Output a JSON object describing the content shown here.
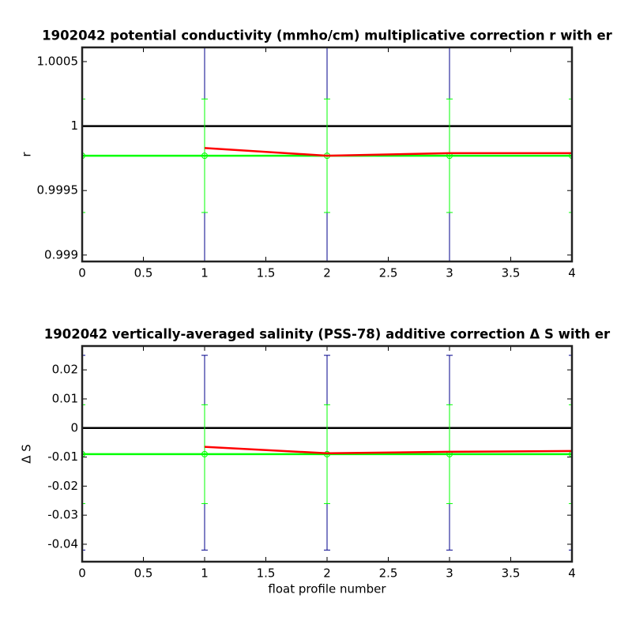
{
  "chart_data": [
    {
      "type": "line",
      "title": "1902042 potential conductivity (mmho/cm) multiplicative correction r with er",
      "y_label": "r",
      "xlim": [
        0,
        4
      ],
      "xticks": [
        0,
        0.5,
        1,
        1.5,
        2,
        2.5,
        3,
        3.5,
        4
      ],
      "ylim": [
        0.99895,
        1.00061
      ],
      "yticks": [
        0.999,
        0.9995,
        1,
        1.0005
      ],
      "x": [
        0,
        1,
        2,
        3,
        4
      ],
      "series": [
        {
          "color": "#00008b",
          "line": false,
          "values": [
            0.99977,
            0.99977,
            0.99977,
            0.99977,
            0.99977
          ],
          "errors": [
            0.0012,
            0.0012,
            0.0012,
            0.0012,
            0.0012
          ]
        },
        {
          "color": "#000000",
          "line": true,
          "values": [
            1,
            1,
            1,
            1,
            1
          ]
        },
        {
          "color": "#00ff00",
          "line": true,
          "marker": true,
          "values": [
            0.99977,
            0.99977,
            0.99977,
            0.99977,
            0.99977
          ],
          "errors": [
            0.00044,
            0.00044,
            0.00044,
            0.00044,
            0.00044
          ]
        },
        {
          "color": "#ff0000",
          "line": true,
          "values": [
            null,
            0.99983,
            0.99977,
            0.99979,
            0.99979
          ]
        }
      ]
    },
    {
      "type": "line",
      "title": "1902042 vertically-averaged salinity (PSS-78) additive correction Δ S with er",
      "y_label": "Δ S",
      "x_label": "float profile number",
      "xlim": [
        0,
        4
      ],
      "xticks": [
        0,
        0.5,
        1,
        1.5,
        2,
        2.5,
        3,
        3.5,
        4
      ],
      "ylim": [
        -0.046,
        0.0282
      ],
      "yticks": [
        -0.04,
        -0.03,
        -0.02,
        -0.01,
        0,
        0.01,
        0.02
      ],
      "x": [
        0,
        1,
        2,
        3,
        4
      ],
      "series": [
        {
          "color": "#00008b",
          "line": false,
          "values": [
            -0.0085,
            -0.0085,
            -0.0085,
            -0.0085,
            -0.0085
          ],
          "errors": [
            0.0335,
            0.0335,
            0.0335,
            0.0335,
            0.0335
          ]
        },
        {
          "color": "#000000",
          "line": true,
          "values": [
            0,
            0,
            0,
            0,
            0
          ]
        },
        {
          "color": "#00ff00",
          "line": true,
          "marker": true,
          "values": [
            -0.009,
            -0.009,
            -0.009,
            -0.009,
            -0.009
          ],
          "errors": [
            0.017,
            0.017,
            0.017,
            0.017,
            0.017
          ]
        },
        {
          "color": "#ff0000",
          "line": true,
          "values": [
            null,
            -0.0065,
            -0.0087,
            -0.0082,
            -0.0079
          ]
        }
      ]
    }
  ]
}
